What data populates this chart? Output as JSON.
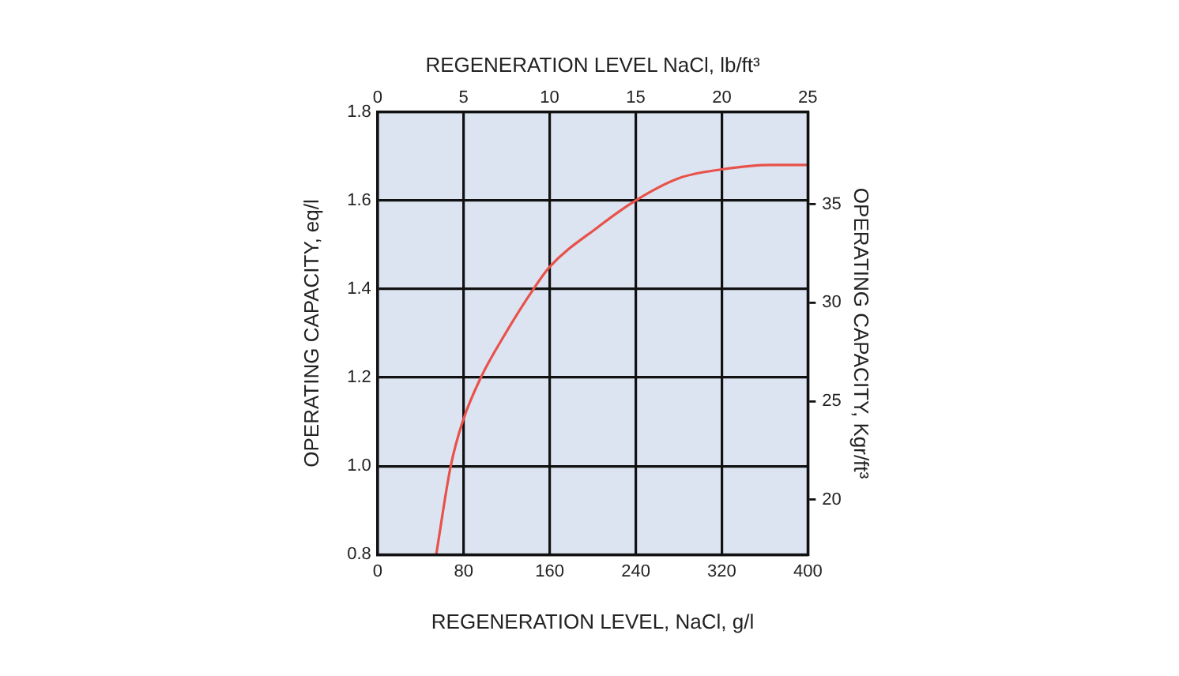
{
  "chart_data": {
    "type": "line",
    "xlabel": "REGENERATION LEVEL, NaCl, g/l",
    "ylabel": "OPERATING CAPACITY, eq/l",
    "x2label": "REGENERATION LEVEL NaCl, lb/ft³",
    "y2label": "OPERATING CAPACITY, Kgr/ft³",
    "xlim": [
      0,
      400
    ],
    "xticks": [
      0,
      80,
      160,
      240,
      320,
      400
    ],
    "ylim": [
      0.8,
      1.8
    ],
    "yticks": [
      {
        "value": 0.8,
        "label": "0.8"
      },
      {
        "value": 1.0,
        "label": "1.0"
      },
      {
        "value": 1.2,
        "label": "1.2"
      },
      {
        "value": 1.4,
        "label": "1.4"
      },
      {
        "value": 1.6,
        "label": "1.6"
      },
      {
        "value": 1.8,
        "label": "1.8"
      }
    ],
    "x2lim": [
      0,
      25
    ],
    "x2ticks": [
      0,
      5,
      10,
      15,
      20,
      25
    ],
    "y2lim": [
      17.2,
      39.7
    ],
    "y2ticks": [
      20,
      25,
      30,
      35
    ],
    "grid": true,
    "marker": "none",
    "line_style": "solid",
    "series": [
      {
        "color": "#e8524a",
        "x": [
          54.5,
          68,
          79,
          96,
          119,
          145,
          160,
          205,
          240,
          280,
          320,
          366,
          400
        ],
        "values": [
          0.8,
          1.0,
          1.1,
          1.2,
          1.3,
          1.4,
          1.45,
          1.54,
          1.6,
          1.65,
          1.67,
          1.68,
          1.68
        ]
      }
    ]
  }
}
